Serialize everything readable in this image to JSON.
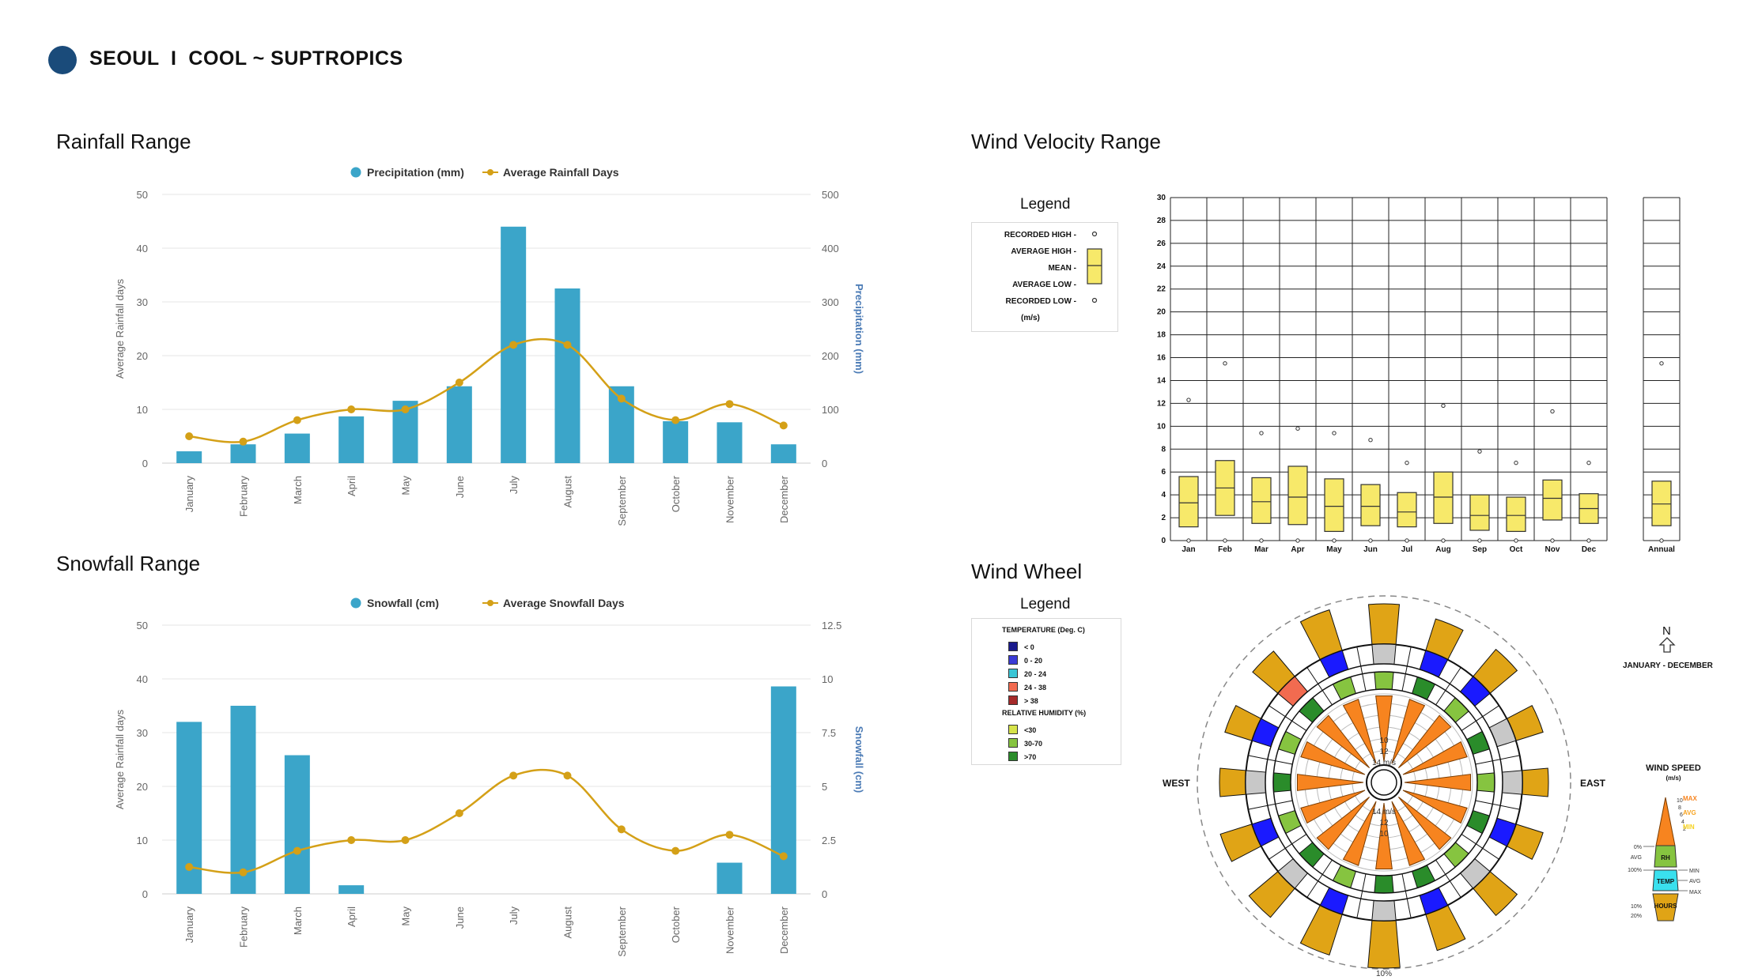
{
  "page": {
    "title": "SEOUL  I  COOL ~ SUPTROPICS",
    "accent_color": "#1a4b7a",
    "bar_color": "#3ba5c9",
    "line_color": "#d4a017"
  },
  "sections": {
    "rainfall": "Rainfall Range",
    "snowfall": "Snowfall Range",
    "wind_velocity": "Wind Velocity Range",
    "wind_wheel": "Wind Wheel"
  },
  "chart_data": [
    {
      "id": "rainfall",
      "type": "bar",
      "title": "Rainfall Range",
      "categories": [
        "January",
        "February",
        "March",
        "April",
        "May",
        "June",
        "July",
        "August",
        "September",
        "October",
        "November",
        "December"
      ],
      "series": [
        {
          "name": "Precipitation (mm)",
          "type": "bar",
          "axis": "right",
          "values": [
            22,
            35,
            55,
            87,
            116,
            143,
            440,
            325,
            143,
            78,
            76,
            35
          ]
        },
        {
          "name": "Average Rainfall Days",
          "type": "line",
          "axis": "left",
          "values": [
            5,
            4,
            8,
            10,
            10,
            15,
            22,
            22,
            12,
            8,
            11,
            7
          ]
        }
      ],
      "y_left": {
        "label": "Average Rainfall days",
        "min": 0,
        "max": 50,
        "ticks": [
          "0",
          "10",
          "20",
          "30",
          "40",
          "50"
        ]
      },
      "y_right": {
        "label": "Precipitation (mm)",
        "min": 0,
        "max": 500,
        "ticks": [
          "0",
          "100",
          "200",
          "300",
          "400",
          "500"
        ]
      },
      "legend": [
        "Precipitation (mm)",
        "Average Rainfall Days"
      ]
    },
    {
      "id": "snowfall",
      "type": "bar",
      "title": "Snowfall Range",
      "categories": [
        "January",
        "February",
        "March",
        "April",
        "May",
        "June",
        "July",
        "August",
        "September",
        "October",
        "November",
        "December"
      ],
      "series": [
        {
          "name": "Snowfall (cm)",
          "type": "bar",
          "axis": "right",
          "values": [
            8.0,
            8.75,
            6.45,
            0.4,
            0,
            0,
            0,
            0,
            0,
            0,
            1.45,
            9.65
          ]
        },
        {
          "name": "Average Snowfall Days",
          "type": "line",
          "axis": "left",
          "values": [
            5,
            4,
            8,
            10,
            10,
            15,
            22,
            22,
            12,
            8,
            11,
            7
          ]
        }
      ],
      "y_left": {
        "label": "Average Rainfall days",
        "min": 0,
        "max": 50,
        "ticks": [
          "0",
          "10",
          "20",
          "30",
          "40",
          "50"
        ]
      },
      "y_right": {
        "label": "Snowfall (cm)",
        "min": 0,
        "max": 12.5,
        "ticks": [
          "0",
          "2.5",
          "5",
          "7.5",
          "10",
          "12.5"
        ]
      },
      "legend": [
        "Snowfall (cm)",
        "Average Snowfall Days"
      ]
    },
    {
      "id": "wind_velocity",
      "type": "box",
      "title": "Wind Velocity Range",
      "unit": "(m/s)",
      "y_ticks": [
        "0",
        "2",
        "4",
        "6",
        "8",
        "10",
        "12",
        "14",
        "16",
        "18",
        "20",
        "22",
        "24",
        "26",
        "28",
        "30"
      ],
      "ylim": [
        0,
        30
      ],
      "categories": [
        "Jan",
        "Feb",
        "Mar",
        "Apr",
        "May",
        "Jun",
        "Jul",
        "Aug",
        "Sep",
        "Oct",
        "Nov",
        "Dec"
      ],
      "annual_label": "Annual",
      "boxes": [
        {
          "low": 1.2,
          "mean": 3.3,
          "high": 5.6,
          "rec_high": 12.3
        },
        {
          "low": 2.2,
          "mean": 4.6,
          "high": 7.0,
          "rec_high": 15.5
        },
        {
          "low": 1.5,
          "mean": 3.4,
          "high": 5.5,
          "rec_high": 9.4
        },
        {
          "low": 1.4,
          "mean": 3.8,
          "high": 6.5,
          "rec_high": 9.8
        },
        {
          "low": 0.8,
          "mean": 3.0,
          "high": 5.4,
          "rec_high": 9.4
        },
        {
          "low": 1.3,
          "mean": 3.0,
          "high": 4.9,
          "rec_high": 8.8
        },
        {
          "low": 1.2,
          "mean": 2.5,
          "high": 4.2,
          "rec_high": 6.8
        },
        {
          "low": 1.5,
          "mean": 3.8,
          "high": 6.0,
          "rec_high": 11.8
        },
        {
          "low": 0.9,
          "mean": 2.2,
          "high": 4.0,
          "rec_high": 7.8
        },
        {
          "low": 0.8,
          "mean": 2.2,
          "high": 3.8,
          "rec_high": 6.8
        },
        {
          "low": 1.8,
          "mean": 3.7,
          "high": 5.3,
          "rec_high": 11.3
        },
        {
          "low": 1.5,
          "mean": 2.8,
          "high": 4.1,
          "rec_high": 6.8
        }
      ],
      "annual": {
        "low": 1.3,
        "mean": 3.2,
        "high": 5.2,
        "rec_high": 15.5
      },
      "legend": {
        "title": "Legend",
        "items": [
          "RECORDED HIGH -",
          "AVERAGE HIGH -",
          "MEAN -",
          "AVERAGE LOW -",
          "RECORDED LOW -",
          "(m/s)"
        ]
      }
    }
  ],
  "wind_wheel": {
    "legend_title": "Legend",
    "temperature_title": "TEMPERATURE (Deg. C)",
    "temperature_items": [
      {
        "label": "< 0",
        "color": "#1a1a8c"
      },
      {
        "label": "0  -  20",
        "color": "#3b3bd6"
      },
      {
        "label": "20  -  24",
        "color": "#3ac6d6"
      },
      {
        "label": "24  -  38",
        "color": "#f26b50"
      },
      {
        "label": "> 38",
        "color": "#a52a2a"
      }
    ],
    "humidity_title": "RELATIVE HUMIDITY (%)",
    "humidity_items": [
      {
        "label": "<30",
        "color": "#d6e34a"
      },
      {
        "label": "30-70",
        "color": "#86c440"
      },
      {
        "label": ">70",
        "color": "#2a8c2a"
      }
    ],
    "north": "N",
    "period": "JANUARY - DECEMBER",
    "west": "WEST",
    "east": "EAST",
    "bottom_pct": "10%",
    "ring_labels": [
      "10",
      "12",
      "14 m/s"
    ],
    "ring_labels_lower": [
      "14 m/s",
      "12",
      "10"
    ],
    "speed_legend": {
      "title": "WIND SPEED",
      "unit": "(m/s)",
      "max": "MAX",
      "avg": "AVG",
      "min": "MIN",
      "rh": "RH",
      "temp": "TEMP",
      "hours": "HOURS",
      "left_labels": [
        "0%",
        "AVG",
        "100%",
        "10%",
        "20%"
      ],
      "right_labels": [
        "MIN",
        "AVG",
        "MAX"
      ],
      "scale": [
        "10",
        "8",
        "6",
        "4",
        "2"
      ]
    }
  }
}
